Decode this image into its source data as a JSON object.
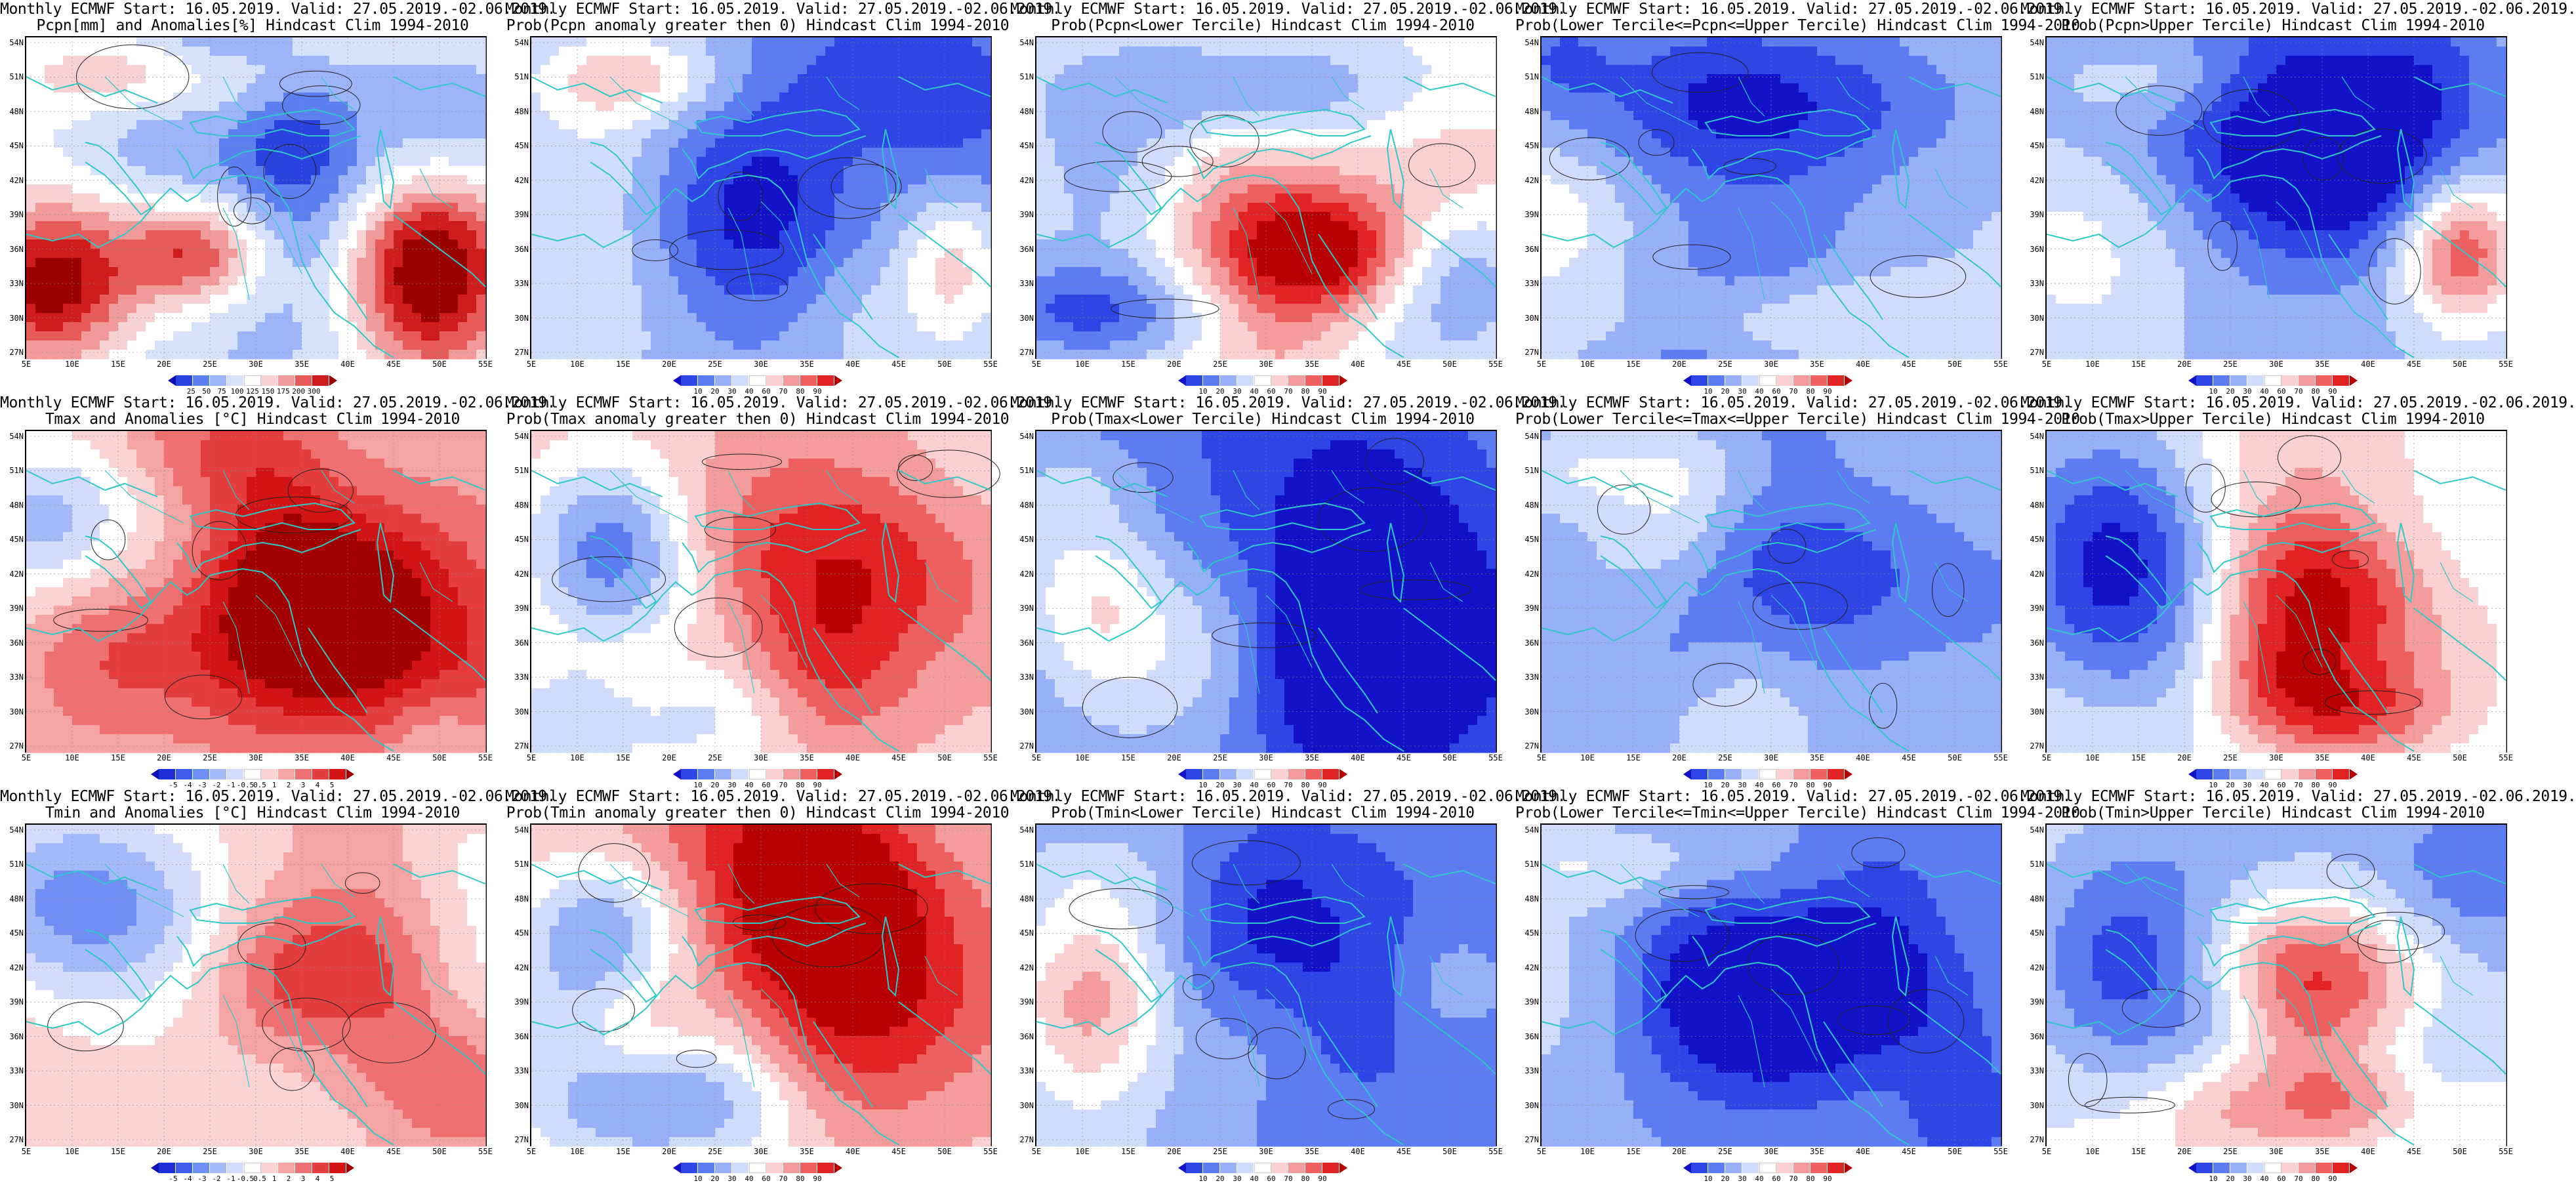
{
  "panels": [
    {
      "title1": "Monthly ECMWF Start: 16.05.2019. Valid: 27.05.2019.-02.06.2019.",
      "title2": "Pcpn[mm] and Anomalies[%] Hindcast Clim 1994-2010",
      "scale": "pcp",
      "pattern": "pcp_anom"
    },
    {
      "title1": "Monthly ECMWF Start: 16.05.2019. Valid: 27.05.2019.-02.06.2019.",
      "title2": "Prob(Pcpn anomaly greater then 0) Hindcast Clim 1994-2010",
      "scale": "prob",
      "pattern": "pcp_pos"
    },
    {
      "title1": "Monthly ECMWF Start: 16.05.2019. Valid: 27.05.2019.-02.06.2019.",
      "title2": "Prob(Pcpn<Lower Tercile) Hindcast Clim 1994-2010",
      "scale": "prob",
      "pattern": "pcp_low"
    },
    {
      "title1": "Monthly ECMWF Start: 16.05.2019. Valid: 27.05.2019.-02.06.2019.",
      "title2": "Prob(Lower Tercile<=Pcpn<=Upper Tercile) Hindcast Clim 1994-2010",
      "scale": "prob",
      "pattern": "pcp_mid"
    },
    {
      "title1": "Monthly ECMWF Start: 16.05.2019. Valid: 27.05.2019.-02.06.2019.",
      "title2": "Prob(Pcpn>Upper Tercile) Hindcast Clim 1994-2010",
      "scale": "prob",
      "pattern": "pcp_up"
    },
    {
      "title1": "Monthly ECMWF Start: 16.05.2019. Valid: 27.05.2019.-02.06.2019.",
      "title2": "Tmax and Anomalies [°C] Hindcast Clim 1994-2010",
      "scale": "temp",
      "pattern": "warm_anom"
    },
    {
      "title1": "Monthly ECMWF Start: 16.05.2019. Valid: 27.05.2019.-02.06.2019.",
      "title2": "Prob(Tmax anomaly greater then 0) Hindcast Clim 1994-2010",
      "scale": "prob",
      "pattern": "warm_pos"
    },
    {
      "title1": "Monthly ECMWF Start: 16.05.2019. Valid: 27.05.2019.-02.06.2019.",
      "title2": "Prob(Tmax<Lower Tercile) Hindcast Clim 1994-2010",
      "scale": "prob",
      "pattern": "cold_low"
    },
    {
      "title1": "Monthly ECMWF Start: 16.05.2019. Valid: 27.05.2019.-02.06.2019.",
      "title2": "Prob(Lower Tercile<=Tmax<=Upper Tercile) Hindcast Clim 1994-2010",
      "scale": "prob",
      "pattern": "mid_low"
    },
    {
      "title1": "Monthly ECMWF Start: 16.05.2019. Valid: 27.05.2019.-02.06.2019.",
      "title2": "Prob(Tmax>Upper Tercile) Hindcast Clim 1994-2010",
      "scale": "prob",
      "pattern": "warm_up"
    },
    {
      "title1": "Monthly ECMWF Start: 16.05.2019. Valid: 27.05.2019.-02.06.2019.",
      "title2": "Tmin and Anomalies [°C] Hindcast Clim 1994-2010",
      "scale": "temp",
      "pattern": "warm_anom2"
    },
    {
      "title1": "Monthly ECMWF Start: 16.05.2019. Valid: 27.05.2019.-02.06.2019.",
      "title2": "Prob(Tmin anomaly greater then 0) Hindcast Clim 1994-2010",
      "scale": "prob",
      "pattern": "warm_pos2"
    },
    {
      "title1": "Monthly ECMWF Start: 16.05.2019. Valid: 27.05.2019.-02.06.2019.",
      "title2": "Prob(Tmin<Lower Tercile) Hindcast Clim 1994-2010",
      "scale": "prob",
      "pattern": "cold_low2"
    },
    {
      "title1": "Monthly ECMWF Start: 16.05.2019. Valid: 27.05.2019.-02.06.2019.",
      "title2": "Prob(Lower Tercile<=Tmin<=Upper Tercile) Hindcast Clim 1994-2010",
      "scale": "prob",
      "pattern": "mid_low2"
    },
    {
      "title1": "Monthly ECMWF Start: 16.05.2019. Valid: 27.05.2019.-02.06.2019.",
      "title2": "Prob(Tmin>Upper Tercile) Hindcast Clim 1994-2010",
      "scale": "prob",
      "pattern": "warm_up2"
    }
  ],
  "lat_labels": [
    "54N",
    "51N",
    "48N",
    "45N",
    "42N",
    "39N",
    "36N",
    "33N",
    "30N",
    "27N"
  ],
  "lon_labels": [
    "5E",
    "10E",
    "15E",
    "20E",
    "25E",
    "30E",
    "35E",
    "40E",
    "45E",
    "50E",
    "55E"
  ],
  "colorbars": {
    "prob": {
      "labels": [
        "10",
        "20",
        "30",
        "40",
        "60",
        "70",
        "80",
        "90"
      ],
      "colors": [
        "#1212c8",
        "#2f45e6",
        "#5d7cf2",
        "#98b0f8",
        "#cfdcfb",
        "#ffffff",
        "#fbd0d0",
        "#f49b9b",
        "#ee5f5f",
        "#e22323",
        "#b80000"
      ]
    },
    "temp": {
      "labels": [
        "-5",
        "-4",
        "-3",
        "-2",
        "-1",
        "-0.5",
        "0.5",
        "1",
        "2",
        "3",
        "4",
        "5"
      ],
      "colors": [
        "#0d10b4",
        "#1f2fd8",
        "#3d5ce8",
        "#6f8df3",
        "#a4b9f8",
        "#d3ddfb",
        "#ffffff",
        "#fbd3d3",
        "#f5a3a3",
        "#ef7070",
        "#e53d3d",
        "#d21414",
        "#a20000"
      ]
    },
    "pcp": {
      "labels": [
        "25",
        "50",
        "75",
        "100",
        "125",
        "150",
        "175",
        "200",
        "300"
      ],
      "colors": [
        "#0a10b4",
        "#2a43e0",
        "#5c7ff0",
        "#9db5f8",
        "#d6e1fb",
        "#ffffff",
        "#f8d2d2",
        "#f09a9a",
        "#e75a5a",
        "#cf1c1c",
        "#9a0000"
      ]
    }
  },
  "colors": {
    "coast": "#2ec8c8",
    "contour": "#222222",
    "frame": "#000000"
  }
}
